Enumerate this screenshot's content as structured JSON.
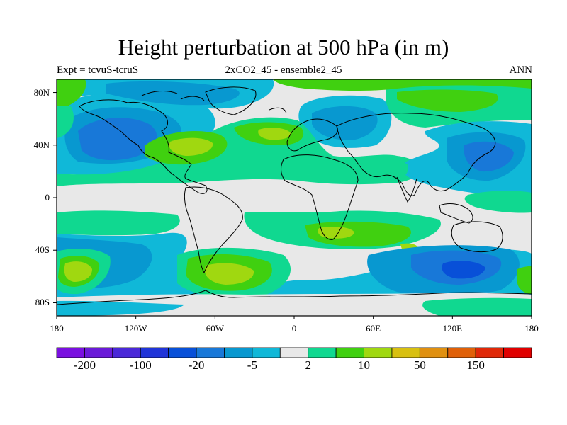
{
  "title": "Height perturbation at 500 hPa (in m)",
  "subtitle_left": "Expt = tcvuS-tcruS",
  "subtitle_center": "2xCO2_45 - ensemble2_45",
  "subtitle_right": "ANN",
  "lat_labels": [
    "80N",
    "40N",
    "0",
    "40S",
    "80S"
  ],
  "lon_labels": [
    "180",
    "120W",
    "60W",
    "0",
    "60E",
    "120E",
    "180"
  ],
  "colorbar": {
    "labels": [
      "-200",
      "-100",
      "-20",
      "-5",
      "2",
      "10",
      "50",
      "150"
    ],
    "colors": [
      "#7a10e0",
      "#6a1ad8",
      "#4a28d8",
      "#2034d8",
      "#0850d8",
      "#1878d8",
      "#0898d0",
      "#10b8d8",
      "#e8e8e8",
      "#10d890",
      "#40d010",
      "#a0d810",
      "#d8c010",
      "#e09010",
      "#e06008",
      "#e02808",
      "#e00000"
    ]
  },
  "map_colors": {
    "neutral": "#e8e8e8",
    "light_blue": "#10b8d8",
    "mid_blue": "#0898d0",
    "blue": "#1878d8",
    "dark_blue": "#0850d8",
    "teal": "#10d890",
    "green": "#40d010",
    "yellow_green": "#a0d810",
    "coast": "#000000"
  }
}
